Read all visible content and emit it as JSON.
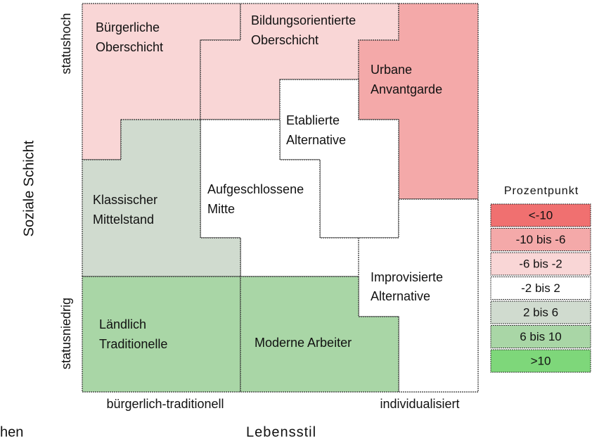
{
  "regions": [
    {
      "lines": [
        "Bürgerliche",
        "Oberschicht"
      ],
      "color": "#f9d6d6"
    },
    {
      "lines": [
        "Bildungsorientierte",
        "Oberschicht"
      ],
      "color": "#f9d6d6"
    },
    {
      "lines": [
        "Urbane",
        "Anvantgarde"
      ],
      "color": "#f4a9a9"
    },
    {
      "lines": [
        "Etablierte",
        "Alternative"
      ],
      "color": "#ffffff"
    },
    {
      "lines": [
        "Aufgeschlossene",
        "Mitte"
      ],
      "color": "#ffffff"
    },
    {
      "lines": [
        "Klassischer",
        "Mittelstand"
      ],
      "color": "#d0dbcf"
    },
    {
      "lines": [
        "Improvisierte",
        "Alternative"
      ],
      "color": "#ffffff"
    },
    {
      "lines": [
        "Ländlich",
        "Traditionelle"
      ],
      "color": "#a9d6a6"
    },
    {
      "lines": [
        "Moderne Arbeiter"
      ],
      "color": "#a9d6a6"
    }
  ],
  "axes": {
    "y_title": "Soziale Schicht",
    "y_top": "statushoch",
    "y_bottom": "statusniedrig",
    "x_title": "Lebensstil",
    "x_left": "bürgerlich-traditionell",
    "x_right": "individualisiert",
    "cut_text": "hen"
  },
  "legend": {
    "title": "Prozentpunkt",
    "items": [
      {
        "label": "<-10",
        "color": "#f07070"
      },
      {
        "label": "-10 bis -6",
        "color": "#f4a9a9"
      },
      {
        "label": "-6 bis -2",
        "color": "#f9d6d6"
      },
      {
        "label": "-2 bis 2",
        "color": "#ffffff"
      },
      {
        "label": "2 bis 6",
        "color": "#d0dbcf"
      },
      {
        "label": "6 bis 10",
        "color": "#a9d6a6"
      },
      {
        "label": ">10",
        "color": "#7ed77a"
      }
    ]
  }
}
